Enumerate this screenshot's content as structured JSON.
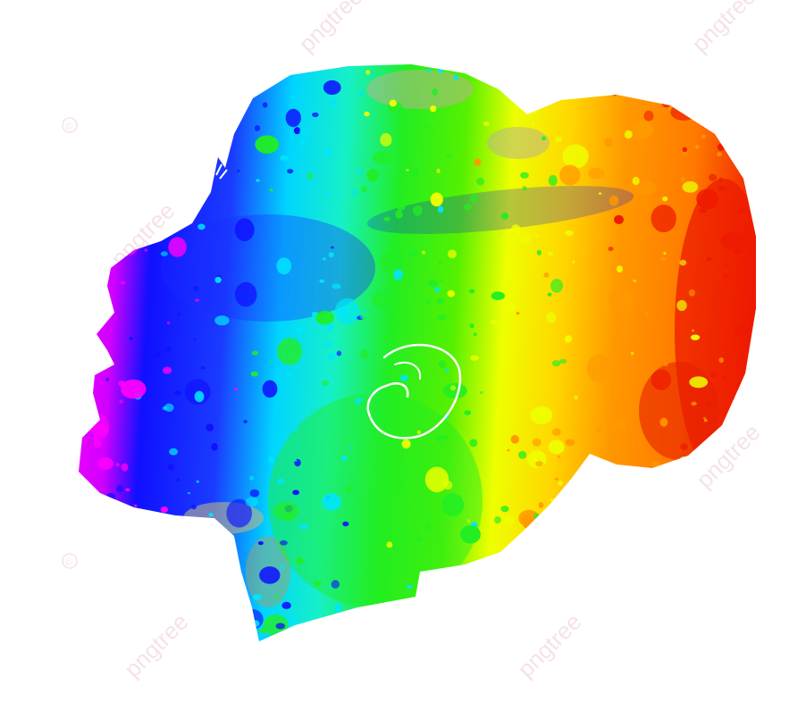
{
  "image": {
    "subject": "head-silhouette-paint-splash",
    "palette": [
      "#ff00ff",
      "#1010ff",
      "#00e5ff",
      "#22ee22",
      "#eeff00",
      "#ff9900",
      "#ee1a00"
    ]
  },
  "watermark": {
    "text": "pngtree",
    "symbol": "©"
  }
}
